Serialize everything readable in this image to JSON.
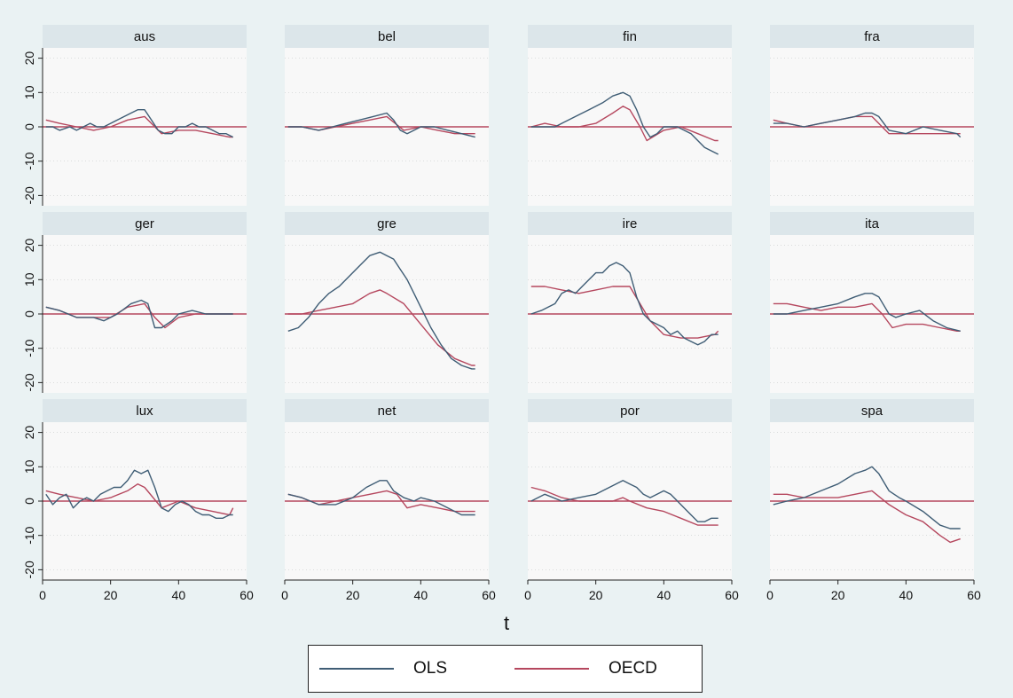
{
  "chart_data": {
    "type": "line",
    "xlabel": "t",
    "ylabel": "",
    "xlim": [
      0,
      60
    ],
    "ylim": [
      -23,
      23
    ],
    "xticks": [
      0,
      20,
      40,
      60
    ],
    "yticks": [
      20,
      10,
      0,
      -10,
      -20
    ],
    "reference_line": 0,
    "grid": true,
    "legend_position": "bottom",
    "colors": {
      "OLS": "#3f5d75",
      "OECD": "#b5475e",
      "reference": "#b5475e"
    },
    "legend": [
      {
        "name": "OLS",
        "color": "#3f5d75"
      },
      {
        "name": "OECD",
        "color": "#b5475e"
      }
    ],
    "panels": [
      {
        "title": "aus",
        "series": [
          {
            "name": "OLS",
            "x": [
              1,
              3,
              5,
              8,
              10,
              12,
              14,
              16,
              18,
              20,
              22,
              24,
              26,
              28,
              30,
              32,
              34,
              36,
              38,
              40,
              42,
              44,
              46,
              48,
              50,
              52,
              54,
              56
            ],
            "y": [
              0,
              0,
              -1,
              0,
              -1,
              0,
              1,
              0,
              0,
              1,
              2,
              3,
              4,
              5,
              5,
              2,
              -1,
              -2,
              -2,
              0,
              0,
              1,
              0,
              0,
              -1,
              -2,
              -2,
              -3
            ]
          },
          {
            "name": "OECD",
            "x": [
              1,
              5,
              10,
              15,
              20,
              25,
              30,
              35,
              40,
              45,
              50,
              55,
              56
            ],
            "y": [
              2,
              1,
              0,
              -1,
              0,
              2,
              3,
              -2,
              -1,
              -1,
              -2,
              -3,
              -3
            ]
          }
        ]
      },
      {
        "title": "bel",
        "series": [
          {
            "name": "OLS",
            "x": [
              1,
              5,
              10,
              14,
              18,
              22,
              26,
              30,
              32,
              34,
              36,
              38,
              40,
              44,
              48,
              52,
              56
            ],
            "y": [
              0,
              0,
              -1,
              0,
              1,
              2,
              3,
              4,
              2,
              -1,
              -2,
              -1,
              0,
              0,
              -1,
              -2,
              -3
            ]
          },
          {
            "name": "OECD",
            "x": [
              1,
              5,
              10,
              15,
              20,
              25,
              30,
              35,
              40,
              45,
              50,
              55,
              56
            ],
            "y": [
              0,
              0,
              -1,
              0,
              1,
              2,
              3,
              -1,
              0,
              -1,
              -2,
              -2,
              -2
            ]
          }
        ]
      },
      {
        "title": "fin",
        "series": [
          {
            "name": "OLS",
            "x": [
              1,
              5,
              8,
              10,
              14,
              18,
              22,
              25,
              28,
              30,
              32,
              34,
              36,
              38,
              40,
              44,
              48,
              52,
              56
            ],
            "y": [
              0,
              0,
              0,
              1,
              3,
              5,
              7,
              9,
              10,
              9,
              5,
              0,
              -3,
              -2,
              0,
              0,
              -2,
              -6,
              -8
            ]
          },
          {
            "name": "OECD",
            "x": [
              1,
              5,
              10,
              15,
              20,
              25,
              28,
              30,
              33,
              35,
              40,
              45,
              50,
              55,
              56
            ],
            "y": [
              0,
              1,
              0,
              0,
              1,
              4,
              6,
              5,
              0,
              -4,
              -1,
              0,
              -2,
              -4,
              -4
            ]
          }
        ]
      },
      {
        "title": "fra",
        "series": [
          {
            "name": "OLS",
            "x": [
              1,
              5,
              10,
              15,
              20,
              25,
              28,
              30,
              32,
              35,
              40,
              45,
              50,
              55,
              56
            ],
            "y": [
              1,
              1,
              0,
              1,
              2,
              3,
              4,
              4,
              3,
              -1,
              -2,
              0,
              -1,
              -2,
              -3
            ]
          },
          {
            "name": "OECD",
            "x": [
              1,
              5,
              10,
              15,
              20,
              25,
              30,
              33,
              35,
              40,
              45,
              50,
              55,
              56
            ],
            "y": [
              2,
              1,
              0,
              1,
              2,
              3,
              3,
              0,
              -2,
              -2,
              -2,
              -2,
              -2,
              -2
            ]
          }
        ]
      },
      {
        "title": "ger",
        "series": [
          {
            "name": "OLS",
            "x": [
              1,
              5,
              10,
              15,
              18,
              22,
              26,
              29,
              31,
              33,
              35,
              38,
              40,
              44,
              48,
              52,
              56
            ],
            "y": [
              2,
              1,
              -1,
              -1,
              -2,
              0,
              3,
              4,
              3,
              -4,
              -4,
              -2,
              0,
              1,
              0,
              0,
              0
            ]
          },
          {
            "name": "OECD",
            "x": [
              1,
              5,
              10,
              15,
              20,
              25,
              30,
              33,
              36,
              40,
              45,
              50,
              55,
              56
            ],
            "y": [
              2,
              1,
              -1,
              -1,
              -1,
              2,
              3,
              -1,
              -4,
              -1,
              0,
              0,
              0,
              0
            ]
          }
        ]
      },
      {
        "title": "gre",
        "series": [
          {
            "name": "OLS",
            "x": [
              1,
              4,
              7,
              10,
              13,
              16,
              19,
              22,
              25,
              28,
              30,
              32,
              34,
              36,
              38,
              40,
              43,
              46,
              49,
              52,
              55,
              56
            ],
            "y": [
              -5,
              -4,
              -1,
              3,
              6,
              8,
              11,
              14,
              17,
              18,
              17,
              16,
              13,
              10,
              6,
              2,
              -4,
              -9,
              -13,
              -15,
              -16,
              -16
            ]
          },
          {
            "name": "OECD",
            "x": [
              1,
              5,
              10,
              15,
              20,
              25,
              28,
              30,
              35,
              40,
              45,
              50,
              55,
              56
            ],
            "y": [
              0,
              0,
              1,
              2,
              3,
              6,
              7,
              6,
              3,
              -3,
              -9,
              -13,
              -15,
              -15
            ]
          }
        ]
      },
      {
        "title": "ire",
        "series": [
          {
            "name": "OLS",
            "x": [
              1,
              4,
              6,
              8,
              10,
              12,
              14,
              16,
              18,
              20,
              22,
              24,
              26,
              28,
              30,
              32,
              34,
              36,
              38,
              40,
              42,
              44,
              46,
              48,
              50,
              52,
              54,
              56
            ],
            "y": [
              0,
              1,
              2,
              3,
              6,
              7,
              6,
              8,
              10,
              12,
              12,
              14,
              15,
              14,
              12,
              5,
              0,
              -2,
              -3,
              -4,
              -6,
              -5,
              -7,
              -8,
              -9,
              -8,
              -6,
              -6
            ]
          },
          {
            "name": "OECD",
            "x": [
              1,
              5,
              10,
              15,
              20,
              25,
              30,
              33,
              36,
              40,
              45,
              50,
              55,
              56
            ],
            "y": [
              8,
              8,
              7,
              6,
              7,
              8,
              8,
              3,
              -2,
              -6,
              -7,
              -7,
              -6,
              -5
            ]
          }
        ]
      },
      {
        "title": "ita",
        "series": [
          {
            "name": "OLS",
            "x": [
              1,
              5,
              10,
              15,
              20,
              25,
              28,
              30,
              32,
              35,
              37,
              40,
              44,
              48,
              52,
              56
            ],
            "y": [
              0,
              0,
              1,
              2,
              3,
              5,
              6,
              6,
              5,
              0,
              -1,
              0,
              1,
              -2,
              -4,
              -5
            ]
          },
          {
            "name": "OECD",
            "x": [
              1,
              5,
              10,
              15,
              20,
              25,
              30,
              33,
              36,
              40,
              45,
              50,
              55,
              56
            ],
            "y": [
              3,
              3,
              2,
              1,
              2,
              2,
              3,
              0,
              -4,
              -3,
              -3,
              -4,
              -5,
              -5
            ]
          }
        ]
      },
      {
        "title": "lux",
        "series": [
          {
            "name": "OLS",
            "x": [
              1,
              3,
              5,
              7,
              9,
              11,
              13,
              15,
              17,
              19,
              21,
              23,
              25,
              27,
              29,
              31,
              33,
              35,
              37,
              39,
              41,
              43,
              45,
              47,
              49,
              51,
              53,
              55,
              56
            ],
            "y": [
              2,
              -1,
              1,
              2,
              -2,
              0,
              1,
              0,
              2,
              3,
              4,
              4,
              6,
              9,
              8,
              9,
              4,
              -2,
              -3,
              -1,
              0,
              -1,
              -3,
              -4,
              -4,
              -5,
              -5,
              -4,
              -4
            ]
          },
          {
            "name": "OECD",
            "x": [
              1,
              5,
              10,
              15,
              20,
              25,
              28,
              30,
              35,
              40,
              45,
              50,
              55,
              56
            ],
            "y": [
              3,
              2,
              1,
              0,
              1,
              3,
              5,
              4,
              -2,
              0,
              -2,
              -3,
              -4,
              -2
            ]
          }
        ]
      },
      {
        "title": "net",
        "series": [
          {
            "name": "OLS",
            "x": [
              1,
              5,
              10,
              15,
              20,
              24,
              28,
              30,
              32,
              35,
              38,
              40,
              44,
              48,
              52,
              56
            ],
            "y": [
              2,
              1,
              -1,
              -1,
              1,
              4,
              6,
              6,
              3,
              1,
              0,
              1,
              0,
              -2,
              -4,
              -4
            ]
          },
          {
            "name": "OECD",
            "x": [
              1,
              5,
              10,
              15,
              20,
              25,
              30,
              33,
              36,
              40,
              45,
              50,
              55,
              56
            ],
            "y": [
              2,
              1,
              -1,
              0,
              1,
              2,
              3,
              2,
              -2,
              -1,
              -2,
              -3,
              -3,
              -3
            ]
          }
        ]
      },
      {
        "title": "por",
        "series": [
          {
            "name": "OLS",
            "x": [
              1,
              5,
              10,
              15,
              20,
              24,
              28,
              30,
              32,
              34,
              36,
              38,
              40,
              42,
              44,
              46,
              48,
              50,
              52,
              54,
              56
            ],
            "y": [
              0,
              2,
              0,
              1,
              2,
              4,
              6,
              5,
              4,
              2,
              1,
              2,
              3,
              2,
              0,
              -2,
              -4,
              -6,
              -6,
              -5,
              -5
            ]
          },
          {
            "name": "OECD",
            "x": [
              1,
              5,
              10,
              15,
              20,
              25,
              28,
              30,
              35,
              40,
              45,
              50,
              55,
              56
            ],
            "y": [
              4,
              3,
              1,
              0,
              0,
              0,
              1,
              0,
              -2,
              -3,
              -5,
              -7,
              -7,
              -7
            ]
          }
        ]
      },
      {
        "title": "spa",
        "series": [
          {
            "name": "OLS",
            "x": [
              1,
              5,
              10,
              15,
              20,
              25,
              28,
              30,
              32,
              35,
              38,
              40,
              45,
              50,
              53,
              56
            ],
            "y": [
              -1,
              0,
              1,
              3,
              5,
              8,
              9,
              10,
              8,
              3,
              1,
              0,
              -3,
              -7,
              -8,
              -8
            ]
          },
          {
            "name": "OECD",
            "x": [
              1,
              5,
              10,
              15,
              20,
              25,
              30,
              35,
              40,
              45,
              50,
              53,
              56
            ],
            "y": [
              2,
              2,
              1,
              1,
              1,
              2,
              3,
              -1,
              -4,
              -6,
              -10,
              -12,
              -11
            ]
          }
        ]
      }
    ]
  }
}
